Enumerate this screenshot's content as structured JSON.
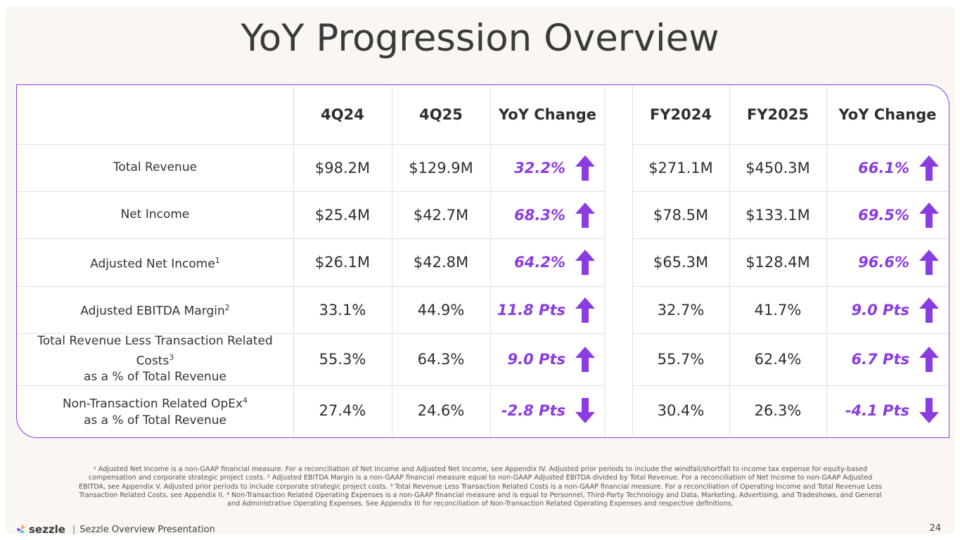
{
  "slide": {
    "title": "YoY Progression Overview",
    "page_number": "24"
  },
  "table": {
    "headers": [
      "",
      "4Q24",
      "4Q25",
      "YoY Change",
      "FY2024",
      "FY2025",
      "YoY Change"
    ],
    "rows": [
      {
        "label": "Total Revenue",
        "sup": "",
        "label2": "",
        "q24": "$98.2M",
        "q25": "$129.9M",
        "q_change": "32.2%",
        "q_dir": "up",
        "fy24": "$271.1M",
        "fy25": "$450.3M",
        "fy_change": "66.1%",
        "fy_dir": "up"
      },
      {
        "label": "Net Income",
        "sup": "",
        "label2": "",
        "q24": "$25.4M",
        "q25": "$42.7M",
        "q_change": "68.3%",
        "q_dir": "up",
        "fy24": "$78.5M",
        "fy25": "$133.1M",
        "fy_change": "69.5%",
        "fy_dir": "up"
      },
      {
        "label": "Adjusted Net Income",
        "sup": "1",
        "label2": "",
        "q24": "$26.1M",
        "q25": "$42.8M",
        "q_change": "64.2%",
        "q_dir": "up",
        "fy24": "$65.3M",
        "fy25": "$128.4M",
        "fy_change": "96.6%",
        "fy_dir": "up"
      },
      {
        "label": "Adjusted EBITDA Margin",
        "sup": "2",
        "label2": "",
        "q24": "33.1%",
        "q25": "44.9%",
        "q_change": "11.8 Pts",
        "q_dir": "up",
        "fy24": "32.7%",
        "fy25": "41.7%",
        "fy_change": "9.0 Pts",
        "fy_dir": "up"
      },
      {
        "label": "Total Revenue Less Transaction Related Costs",
        "sup": "3",
        "label2": "as a % of Total Revenue",
        "q24": "55.3%",
        "q25": "64.3%",
        "q_change": "9.0 Pts",
        "q_dir": "up",
        "fy24": "55.7%",
        "fy25": "62.4%",
        "fy_change": "6.7 Pts",
        "fy_dir": "up"
      },
      {
        "label": "Non-Transaction Related OpEx",
        "sup": "4",
        "label2": "as a % of Total Revenue",
        "q24": "27.4%",
        "q25": "24.6%",
        "q_change": "-2.8 Pts",
        "q_dir": "down",
        "fy24": "30.4%",
        "fy25": "26.3%",
        "fy_change": "-4.1 Pts",
        "fy_dir": "down"
      }
    ]
  },
  "footnotes": "¹ Adjusted Net Income is a non-GAAP financial measure. For a reconciliation of Net Income and Adjusted Net Income, see Appendix IV. Adjusted prior periods to include the windfall/shortfall to income tax expense for equity-based compensation and corporate strategic project costs. ² Adjusted EBITDA Margin is a non-GAAP financial measure equal to non-GAAP Adjusted EBITDA divided by Total Revenue. For a reconciliation of Net Income to non-GAAP Adjusted EBITDA, see Appendix V. Adjusted prior periods to include corporate strategic project costs. ³ Total Revenue Less Transaction Related Costs is a non-GAAP financial measure. For a reconciliation of Operating Income and Total Revenue Less Transaction Related Costs, see Appendix II. ⁴ Non-Transaction Related Operating Expenses is a non-GAAP financial measure and is equal to Personnel, Third-Party Technology and Data, Marketing, Advertising, and Tradeshows, and General and Administrative Operating Expenses. See Appendix III for reconciliation of Non-Transaction Related Operating Expenses and respective definitions.",
  "footer": {
    "logo_text": "sezzle",
    "separator": "|",
    "presentation_name": "Sezzle Overview Presentation"
  },
  "colors": {
    "accent": "#8a3ce0",
    "background": "#faf6f1"
  },
  "icons": {
    "up": "arrow-up-icon",
    "down": "arrow-down-icon",
    "logo": "sezzle-logo-icon"
  }
}
